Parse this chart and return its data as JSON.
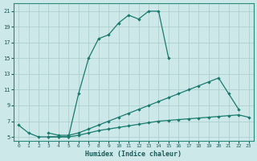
{
  "xlabel": "Humidex (Indice chaleur)",
  "bg_color": "#cce8e8",
  "grid_color": "#aacccc",
  "line_color": "#1a7a6e",
  "xlim": [
    -0.5,
    23.5
  ],
  "ylim": [
    4.5,
    22.0
  ],
  "xticks": [
    0,
    1,
    2,
    3,
    4,
    5,
    6,
    7,
    8,
    9,
    10,
    11,
    12,
    13,
    14,
    15,
    16,
    17,
    18,
    19,
    20,
    21,
    22,
    23
  ],
  "yticks": [
    5,
    7,
    9,
    11,
    13,
    15,
    17,
    19,
    21
  ],
  "line1_x": [
    0,
    1,
    2,
    3,
    4,
    5,
    6,
    7,
    8,
    9,
    10,
    11,
    12,
    13,
    14,
    15
  ],
  "line1_y": [
    6.5,
    5.5,
    5.0,
    5.0,
    5.0,
    5.0,
    10.5,
    15.0,
    17.5,
    18.0,
    19.5,
    20.5,
    20.0,
    21.0,
    21.0,
    15.0
  ],
  "line2_x": [
    3,
    4,
    5,
    6,
    7,
    8,
    9,
    10,
    11,
    12,
    13,
    14,
    15,
    16,
    17,
    18,
    19,
    20,
    21,
    22
  ],
  "line2_y": [
    5.5,
    5.2,
    5.2,
    5.5,
    6.0,
    6.5,
    7.0,
    7.5,
    8.0,
    8.5,
    9.0,
    9.5,
    10.0,
    10.5,
    11.0,
    11.5,
    12.0,
    12.5,
    10.5,
    8.5
  ],
  "line3_x": [
    3,
    4,
    5,
    6,
    7,
    8,
    9,
    10,
    11,
    12,
    13,
    14,
    15,
    16,
    17,
    18,
    19,
    20,
    21,
    22,
    23
  ],
  "line3_y": [
    5.0,
    5.0,
    5.0,
    5.2,
    5.5,
    5.8,
    6.0,
    6.2,
    6.4,
    6.6,
    6.8,
    7.0,
    7.1,
    7.2,
    7.3,
    7.4,
    7.5,
    7.6,
    7.7,
    7.8,
    7.5
  ]
}
